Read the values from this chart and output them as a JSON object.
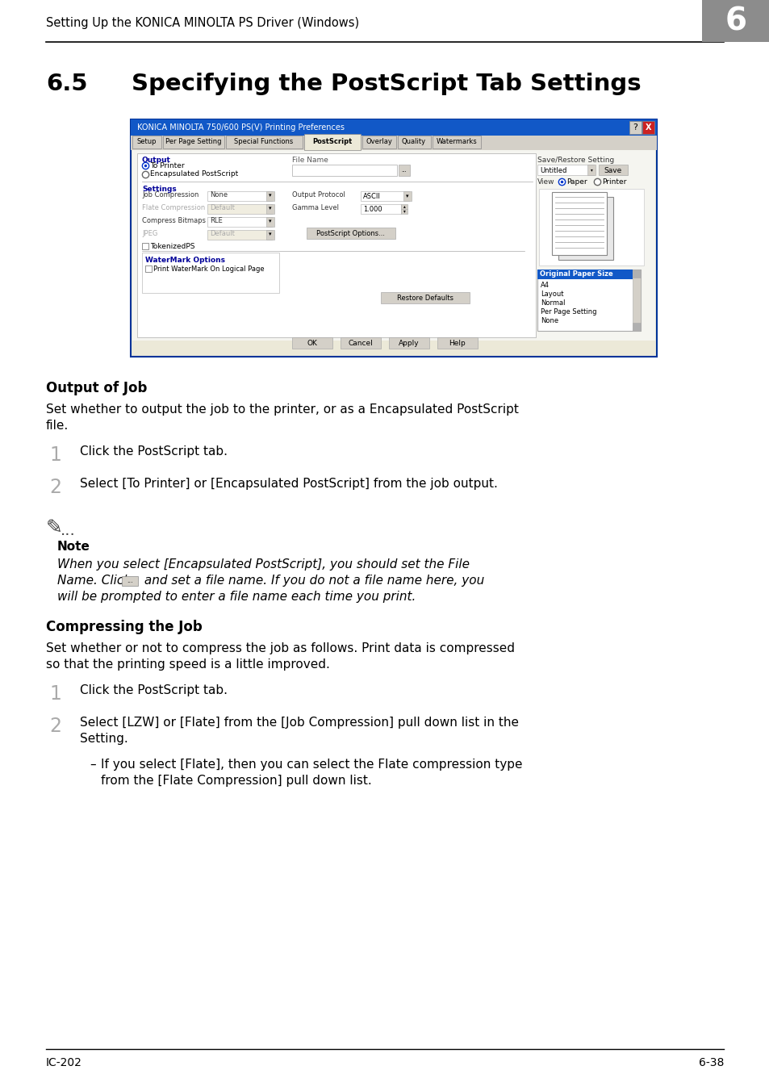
{
  "page_bg": "#ffffff",
  "header_text": "Setting Up the KONICA MINOLTA PS Driver (Windows)",
  "header_num": "6",
  "header_num_bg": "#8c8c8c",
  "section_num": "6.5",
  "section_title": "Specifying the PostScript Tab Settings",
  "footer_left": "IC-202",
  "footer_right": "6-38",
  "dialog_title": "KONICA MINOLTA 750/600 PS(V) Printing Preferences",
  "tabs": [
    "Setup",
    "Per Page Setting",
    "Special Functions",
    "PostScript",
    "Overlay",
    "Quality",
    "Watermarks"
  ],
  "active_tab": "PostScript",
  "output_heading": "Output of Job",
  "output_para": "Set whether to output the job to the printer, or as a Encapsulated PostScript file.",
  "step1a": "Click the PostScript tab.",
  "step2a": "Select [To Printer] or [Encapsulated PostScript] from the job output.",
  "note_heading": "Note",
  "note_line1": "When you select [Encapsulated PostScript], you should set the File",
  "note_line2": "Name. Click       and set a file name. If you do not a file name here, you",
  "note_line3": "will be prompted to enter a file name each time you print.",
  "compress_heading": "Compressing the Job",
  "compress_para": "Set whether or not to compress the job as follows. Print data is compressed so that the printing speed is a little improved.",
  "step1b": "Click the PostScript tab.",
  "step2b_line1": "Select [LZW] or [Flate] from the [Job Compression] pull down list in the",
  "step2b_line2": "Setting.",
  "sub_line1": "If you select [Flate], then you can select the Flate compression type",
  "sub_line2": "from the [Flate Compression] pull down list."
}
